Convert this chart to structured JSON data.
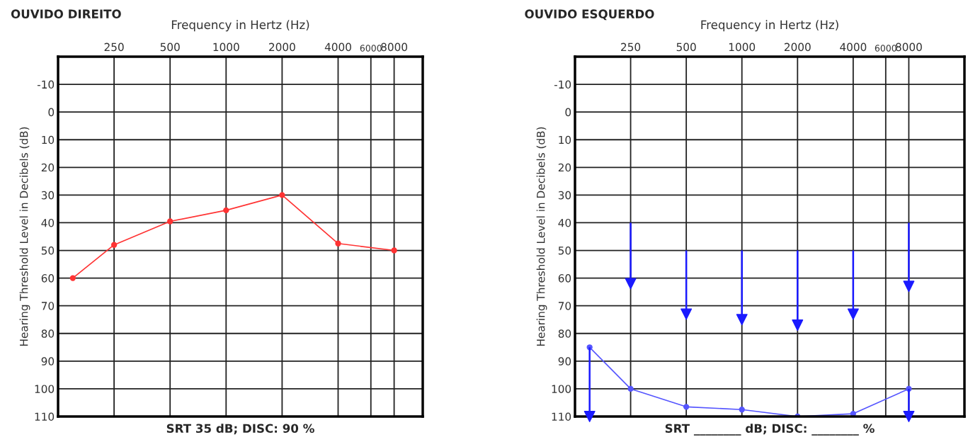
{
  "chart_data": [
    {
      "type": "line",
      "title": "OUVIDO DIREITO",
      "xlabel": "Frequency in Hertz (Hz)",
      "ylabel": "Hearing Threshold Level in Decibels (dB)",
      "log": "x",
      "xlim": [
        125,
        11400
      ],
      "ylim": [
        110,
        -20
      ],
      "xticks": [
        250,
        500,
        1000,
        2000,
        4000,
        6000,
        8000
      ],
      "yticks": [
        -10,
        0,
        10,
        20,
        30,
        40,
        50,
        60,
        70,
        80,
        90,
        100,
        110
      ],
      "grid": true,
      "marker": "circle",
      "line_style": "solid",
      "series": [
        {
          "color": "#ff3333",
          "x": [
            150,
            250,
            500,
            1000,
            2000,
            4000,
            8000
          ],
          "values": [
            60,
            48,
            39.5,
            35.5,
            30,
            47.5,
            50
          ]
        }
      ],
      "annotations": [
        "SRT 35 dB; DISC: 90 %"
      ]
    },
    {
      "type": "line",
      "title": "OUVIDO ESQUERDO",
      "xlabel": "Frequency in Hertz (Hz)",
      "ylabel": "Hearing Threshold Level in Decibels (dB)",
      "log": "x",
      "xlim": [
        125,
        16000
      ],
      "ylim": [
        110,
        -20
      ],
      "xticks": [
        250,
        500,
        1000,
        2000,
        4000,
        6000,
        8000
      ],
      "yticks": [
        -10,
        0,
        10,
        20,
        30,
        40,
        50,
        60,
        70,
        80,
        90,
        100,
        110
      ],
      "grid": true,
      "marker": "circle",
      "line_style": "solid",
      "series": [
        {
          "color": "#5555ff",
          "x": [
            150,
            250,
            500,
            1000,
            2000,
            4000,
            8000
          ],
          "values": [
            85,
            100,
            106.5,
            107.5,
            110,
            109,
            100
          ]
        },
        {
          "type": "scatter",
          "marker": "triangle",
          "color": "#1a1aff",
          "x": [
            150,
            250,
            500,
            1000,
            2000,
            4000,
            8000,
            8000
          ],
          "values": [
            110,
            62,
            73,
            75,
            77,
            73,
            63,
            110
          ],
          "errors": [
            [
              85,
              110
            ],
            [
              40,
              62
            ],
            [
              50,
              73
            ],
            [
              50,
              75
            ],
            [
              50,
              77
            ],
            [
              50,
              73
            ],
            [
              40,
              63
            ],
            [
              100,
              110
            ]
          ]
        }
      ],
      "annotations": [
        "SRT ________ dB; DISC: ________ %"
      ]
    }
  ]
}
